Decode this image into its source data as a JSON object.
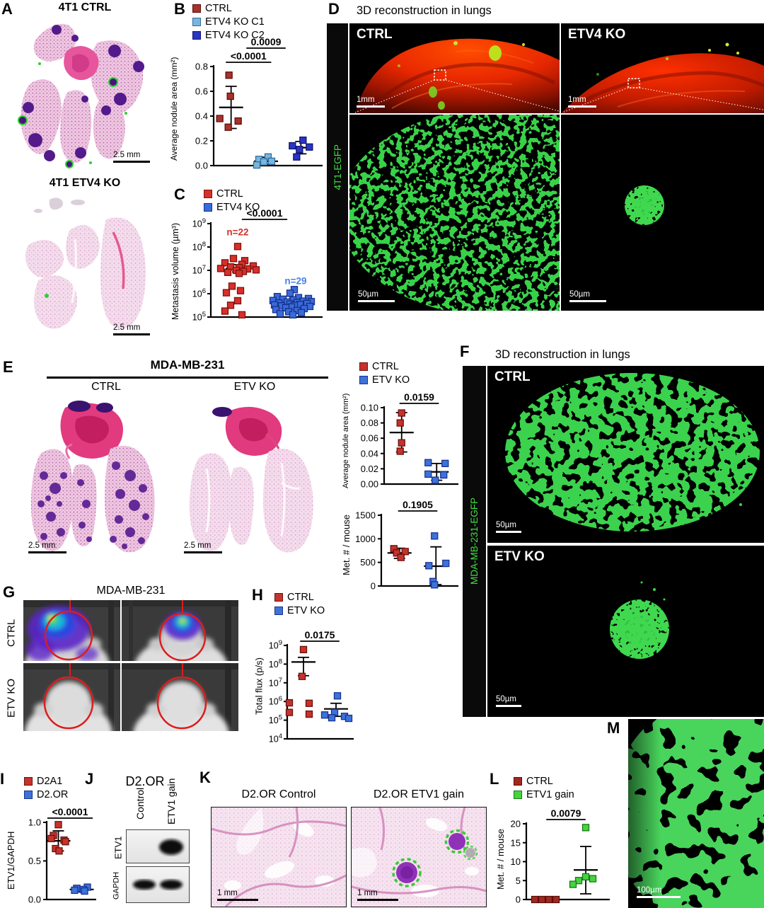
{
  "panels": {
    "A": {
      "label": "A",
      "top_title": "4T1 CTRL",
      "bottom_title": "4T1 ETV4 KO",
      "scalebar_top": "2.5 mm",
      "scalebar_bottom": "2.5 mm"
    },
    "B": {
      "label": "B"
    },
    "C": {
      "label": "C"
    },
    "D": {
      "label": "D",
      "title": "3D reconstruction in lungs",
      "side_label": "4T1-EGFP",
      "img1_label": "CTRL",
      "img2_label": "ETV4 KO",
      "scalebar_img1": "1mm",
      "scalebar_img2": "1mm",
      "scalebar_img3": "50µm",
      "scalebar_img4": "50µm"
    },
    "E": {
      "label": "E",
      "title": "MDA-MB-231",
      "left_title": "CTRL",
      "right_title": "ETV KO",
      "scalebar_left": "2.5 mm",
      "scalebar_right": "2.5 mm"
    },
    "F": {
      "label": "F",
      "title": "3D reconstruction in lungs",
      "side_label": "MDA-MB-231-EGFP",
      "img1_label": "CTRL",
      "img2_label": "ETV KO",
      "scalebar_img1": "50µm",
      "scalebar_img2": "50µm"
    },
    "G": {
      "label": "G",
      "title": "MDA-MB-231",
      "row1_label": "CTRL",
      "row2_label": "ETV KO"
    },
    "H": {
      "label": "H"
    },
    "I": {
      "label": "I"
    },
    "J": {
      "label": "J",
      "title": "D2.OR",
      "lane1": "Control",
      "lane2": "ETV1 gain",
      "blot1": "ETV1",
      "blot2": "GAPDH"
    },
    "K": {
      "label": "K",
      "left_title": "D2.OR Control",
      "right_title": "D2.OR ETV1 gain",
      "scalebar_left": "1 mm",
      "scalebar_right": "1 mm"
    },
    "L": {
      "label": "L"
    },
    "M": {
      "label": "M",
      "scalebar": "100µm"
    }
  },
  "chart_data": [
    {
      "id": "B",
      "type": "scatter",
      "scale": "linear",
      "ylabel": "Average nodule area (mm²)",
      "ylim": [
        0,
        0.8
      ],
      "yticks": [
        0,
        0.2,
        0.4,
        0.6,
        0.8
      ],
      "ytick_labels": [
        "0.0",
        "0.2",
        "0.4",
        "0.6",
        "0.8"
      ],
      "mleft": 46,
      "legend": [
        {
          "label": "CTRL",
          "color": "#a8322c",
          "stroke": "#5e0f0a"
        },
        {
          "label": "ETV4 KO C1",
          "color": "#7ab6dc",
          "stroke": "#2f6e9e"
        },
        {
          "label": "ETV4 KO C2",
          "color": "#2a35c4",
          "stroke": "#0d1470"
        }
      ],
      "groups": [
        {
          "name": "CTRL",
          "color": "#a8322c",
          "stroke": "#5e0f0a",
          "values": [
            0.73,
            0.56,
            0.38,
            0.36,
            0.31
          ],
          "dx": [
            -3,
            -1,
            -16,
            10,
            -4
          ],
          "mean": 0.47,
          "err_lo": 0.3,
          "err_hi": 0.64
        },
        {
          "name": "ETV4 KO C1",
          "color": "#7ab6dc",
          "stroke": "#2f6e9e",
          "values": [
            0.07,
            0.05,
            0.035,
            0.03,
            0.005
          ],
          "dx": [
            3,
            -10,
            8,
            -3,
            -13
          ],
          "mean": 0.035,
          "err_lo": 0.012,
          "err_hi": 0.068
        },
        {
          "name": "ETV4 KO C2",
          "color": "#2a35c4",
          "stroke": "#0d1470",
          "values": [
            0.205,
            0.16,
            0.15,
            0.13,
            0.07
          ],
          "dx": [
            3,
            -12,
            12,
            -2,
            -6
          ],
          "mean": 0.145,
          "err_lo": 0.095,
          "err_hi": 0.195
        }
      ],
      "pvalues": [
        {
          "text": "<0.0001",
          "from": 0,
          "to": 1,
          "level": 0
        },
        {
          "text": "0.0009",
          "from": 0,
          "to": 2,
          "level": 1
        }
      ]
    },
    {
      "id": "C",
      "type": "scatter",
      "scale": "log",
      "ylabel": "Metastasis volume (µm³)",
      "ylim": [
        5,
        9
      ],
      "yticks": [
        5,
        6,
        7,
        8,
        9
      ],
      "mleft": 40,
      "legend": [
        {
          "label": "CTRL",
          "color": "#d7302a",
          "stroke": "#7c120c"
        },
        {
          "label": "ETV4 KO",
          "color": "#3a6bd8",
          "stroke": "#16318f"
        }
      ],
      "groups": [
        {
          "name": "CTRL",
          "color": "#d7302a",
          "stroke": "#7c120c",
          "values": [
            105000000.0,
            32000000.0,
            26000000.0,
            21000000.0,
            18000000.0,
            15500000.0,
            14000000.0,
            13000000.0,
            12000000.0,
            11500000.0,
            10500000.0,
            10000000.0,
            9000000.0,
            8200000.0,
            7400000.0,
            2100000.0,
            1350000.0,
            1100000.0,
            500000.0,
            320000.0,
            180000.0,
            125000.0
          ],
          "dx": [
            0,
            -6,
            10,
            -18,
            6,
            22,
            -10,
            2,
            -24,
            14,
            26,
            -2,
            8,
            -14,
            2,
            -8,
            4,
            -16,
            0,
            -10,
            -18,
            6
          ],
          "mean": 12000000.0,
          "err_lo": 8500000.0,
          "err_hi": 17500000.0
        },
        {
          "name": "ETV4 KO",
          "color": "#3a6bd8",
          "stroke": "#16318f",
          "values": [
            1500000.0,
            1050000.0,
            750000.0,
            680000.0,
            620000.0,
            580000.0,
            540000.0,
            510000.0,
            480000.0,
            460000.0,
            440000.0,
            420000.0,
            400000.0,
            380000.0,
            360000.0,
            345000.0,
            330000.0,
            315000.0,
            300000.0,
            285000.0,
            270000.0,
            250000.0,
            230000.0,
            210000.0,
            190000.0,
            170000.0,
            155000.0,
            140000.0,
            125000.0
          ],
          "dx": [
            4,
            -2,
            -20,
            10,
            24,
            -12,
            2,
            -26,
            16,
            28,
            -6,
            8,
            -18,
            22,
            -2,
            12,
            -24,
            4,
            -14,
            26,
            0,
            -8,
            18,
            -22,
            8,
            -4,
            14,
            -16,
            2
          ],
          "mean": 370000.0,
          "err_lo": 300000.0,
          "err_hi": 450000.0
        }
      ],
      "pvalues": [
        {
          "text": "<0.0001",
          "from": 0,
          "to": 1,
          "level": 0
        }
      ],
      "ann": [
        {
          "text": "n=22",
          "group": 0,
          "value": 320000000.0,
          "dx": 0,
          "color": "#d7302a"
        },
        {
          "text": "n=29",
          "group": 1,
          "value": 2600000.0,
          "dx": 6,
          "color": "#4a82e8"
        }
      ]
    },
    {
      "id": "E1",
      "type": "scatter",
      "scale": "linear",
      "ylabel": "Average nodule area (mm²)",
      "ylim": [
        0,
        0.1
      ],
      "yticks": [
        0,
        0.02,
        0.04,
        0.06,
        0.08,
        0.1
      ],
      "ytick_labels": [
        "0.00",
        "0.02",
        "0.04",
        "0.06",
        "0.08",
        "0.10"
      ],
      "mleft": 46,
      "legend": [
        {
          "label": "CTRL",
          "color": "#c5332c",
          "stroke": "#6d100c"
        },
        {
          "label": "ETV KO",
          "color": "#3e72d9",
          "stroke": "#173390"
        }
      ],
      "groups": [
        {
          "name": "CTRL",
          "color": "#c5332c",
          "stroke": "#6d100c",
          "values": [
            0.093,
            0.08,
            0.054,
            0.043
          ],
          "dx": [
            0,
            -2,
            0,
            -2
          ],
          "mean": 0.0675,
          "err_lo": 0.042,
          "err_hi": 0.0935
        },
        {
          "name": "ETV KO",
          "color": "#3e72d9",
          "stroke": "#173390",
          "values": [
            0.028,
            0.027,
            0.013,
            0.012,
            0.005
          ],
          "dx": [
            -12,
            12,
            -12,
            10,
            -2
          ],
          "mean": 0.016,
          "err_lo": 0.005,
          "err_hi": 0.027
        }
      ],
      "pvalues": [
        {
          "text": "0.0159",
          "from": 0,
          "to": 1,
          "level": 0
        }
      ]
    },
    {
      "id": "E2",
      "type": "scatter",
      "scale": "linear",
      "ylabel": "Met. # / mouse",
      "ylim": [
        0,
        1500
      ],
      "yticks": [
        0,
        500,
        1000,
        1500
      ],
      "ytick_labels": [
        "0",
        "500",
        "1000",
        "1500"
      ],
      "mleft": 42,
      "groups": [
        {
          "name": "CTRL",
          "color": "#c5332c",
          "stroke": "#6d100c",
          "values": [
            790,
            730,
            700,
            605
          ],
          "dx": [
            -8,
            8,
            -4,
            2
          ],
          "mean": 700,
          "err_lo": 585,
          "err_hi": 800
        },
        {
          "name": "ETV KO",
          "color": "#3e72d9",
          "stroke": "#173390",
          "values": [
            1060,
            480,
            430,
            95,
            25
          ],
          "dx": [
            -2,
            14,
            -10,
            -4,
            -2
          ],
          "mean": 420,
          "err_lo": 30,
          "err_hi": 830
        }
      ],
      "pvalues": [
        {
          "text": "0.1905",
          "from": 0,
          "to": 1,
          "level": 0
        }
      ]
    },
    {
      "id": "H",
      "type": "scatter",
      "scale": "log",
      "ylabel": "Total flux (p/s)",
      "ylim": [
        4,
        9
      ],
      "yticks": [
        4,
        5,
        6,
        7,
        8,
        9
      ],
      "mleft": 30,
      "mright": 4,
      "legend": [
        {
          "label": "CTRL",
          "color": "#c5332c",
          "stroke": "#6d100c"
        },
        {
          "label": "ETV KO",
          "color": "#3e72d9",
          "stroke": "#173390"
        }
      ],
      "groups": [
        {
          "name": "CTRL",
          "color": "#c5332c",
          "stroke": "#6d100c",
          "values": [
            600000000.0,
            22000000.0,
            850000.0,
            800000.0,
            260000.0,
            210000.0
          ],
          "dx": [
            0,
            -2,
            -20,
            8,
            -20,
            8
          ],
          "mean": 130000000.0,
          "err_lo": 24000000.0,
          "err_hi": 230000000.0
        },
        {
          "name": "ETV KO",
          "color": "#3e72d9",
          "stroke": "#173390",
          "values": [
            2000000.0,
            260000.0,
            190000.0,
            160000.0,
            135000.0,
            125000.0
          ],
          "dx": [
            2,
            -2,
            -16,
            12,
            -6,
            18
          ],
          "mean": 400000.0,
          "err_lo": 160000.0,
          "err_hi": 800000.0
        }
      ],
      "pvalues": [
        {
          "text": "0.0175",
          "from": 0,
          "to": 1,
          "level": 0
        }
      ]
    },
    {
      "id": "I",
      "type": "scatter",
      "scale": "linear",
      "ylabel": "ETV1/GAPDH",
      "ylim": [
        0,
        1.0
      ],
      "yticks": [
        0,
        0.5,
        1.0
      ],
      "ytick_labels": [
        "0.0",
        "0.5",
        "1.0"
      ],
      "mleft": 42,
      "mright": 6,
      "legend": [
        {
          "label": "D2A1",
          "color": "#c5332c",
          "stroke": "#6d100c"
        },
        {
          "label": "D2.OR",
          "color": "#3e72d9",
          "stroke": "#173390"
        }
      ],
      "groups": [
        {
          "name": "D2A1",
          "color": "#c5332c",
          "stroke": "#6d100c",
          "values": [
            0.97,
            0.83,
            0.79,
            0.77,
            0.75,
            0.66,
            0.63
          ],
          "dx": [
            0,
            -7,
            -10,
            8,
            10,
            -4,
            1
          ],
          "mean": 0.76,
          "err_lo": 0.63,
          "err_hi": 0.89
        },
        {
          "name": "D2.OR",
          "color": "#3e72d9",
          "stroke": "#173390",
          "values": [
            0.16,
            0.145,
            0.13,
            0.12,
            0.11
          ],
          "dx": [
            8,
            -7,
            2,
            -10,
            4
          ],
          "mean": 0.13,
          "err_lo": 0.1,
          "err_hi": 0.16
        }
      ],
      "pvalues": [
        {
          "text": "<0.0001",
          "from": 0,
          "to": 1,
          "level": 0
        }
      ]
    },
    {
      "id": "L",
      "type": "scatter",
      "scale": "linear",
      "ylabel": "Met. # / mouse",
      "ylim": [
        0,
        20
      ],
      "yticks": [
        0,
        5,
        10,
        15,
        20
      ],
      "ytick_labels": [
        "0",
        "5",
        "10",
        "15",
        "20"
      ],
      "mleft": 30,
      "legend": [
        {
          "label": "CTRL",
          "color": "#a02820",
          "stroke": "#5c0e08"
        },
        {
          "label": "ETV1 gain",
          "color": "#46d33f",
          "stroke": "#157a15"
        }
      ],
      "groups": [
        {
          "name": "CTRL",
          "color": "#a02820",
          "stroke": "#5c0e08",
          "values": [
            0,
            0,
            0,
            0
          ],
          "dx": [
            -16,
            -6,
            4,
            14
          ],
          "mean": null
        },
        {
          "name": "ETV1 gain",
          "color": "#46d33f",
          "stroke": "#157a15",
          "values": [
            19,
            6,
            5.5,
            5,
            4
          ],
          "dx": [
            0,
            0,
            10,
            -10,
            -18
          ],
          "mean": 7.8,
          "err_lo": 1.5,
          "err_hi": 14
        }
      ],
      "pvalues": [
        {
          "text": "0.0079",
          "from": 0,
          "to": 1,
          "level": 0
        }
      ]
    }
  ]
}
